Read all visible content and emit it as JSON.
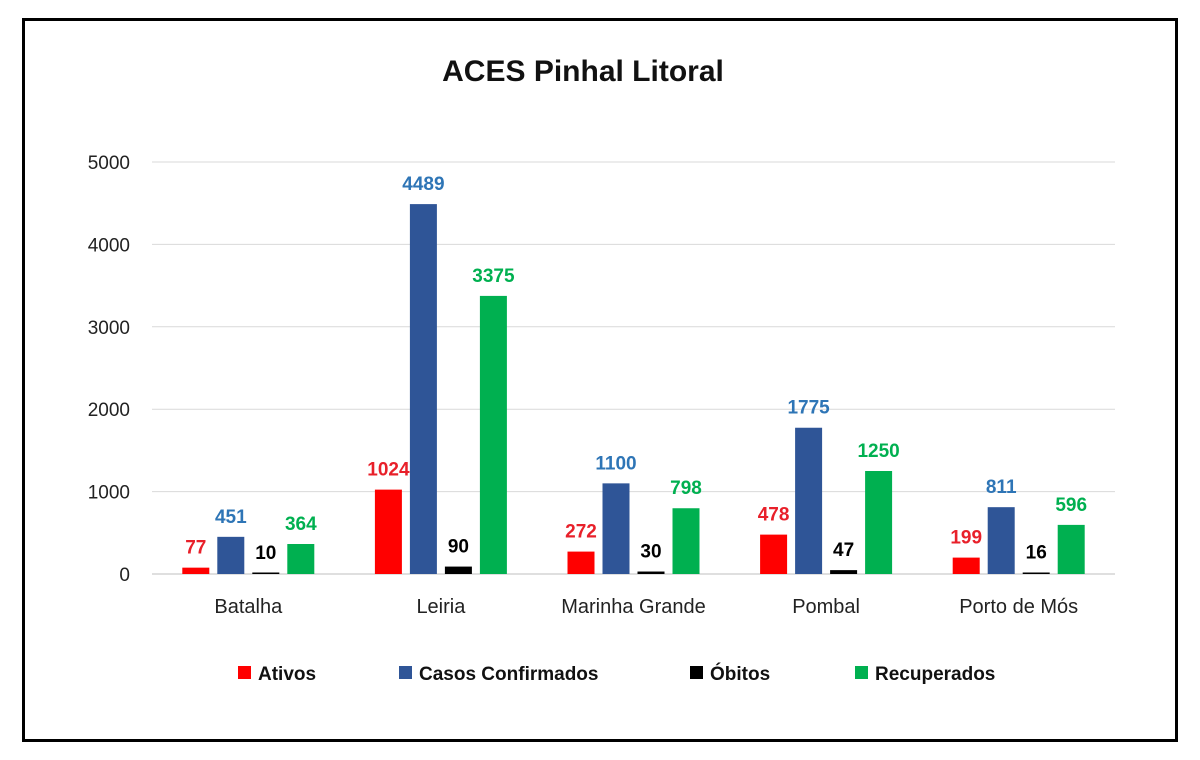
{
  "chart_data": {
    "type": "bar",
    "title": "ACES Pinhal Litoral",
    "categories": [
      "Batalha",
      "Leiria",
      "Marinha Grande",
      "Pombal",
      "Porto de Mós"
    ],
    "series": [
      {
        "name": "Ativos",
        "color": "#ff0000",
        "label_color": "#e8202a",
        "values": [
          77,
          1024,
          272,
          478,
          199
        ]
      },
      {
        "name": "Casos Confirmados",
        "color": "#2f5597",
        "label_color": "#2e75b6",
        "values": [
          451,
          4489,
          1100,
          1775,
          811
        ]
      },
      {
        "name": "Óbitos",
        "color": "#000000",
        "label_color": "#000000",
        "values": [
          10,
          90,
          30,
          47,
          16
        ]
      },
      {
        "name": "Recuperados",
        "color": "#00b050",
        "label_color": "#00b050",
        "values": [
          364,
          3375,
          798,
          1250,
          596
        ]
      }
    ],
    "yticks": [
      0,
      1000,
      2000,
      3000,
      4000,
      5000
    ],
    "ylim": [
      0,
      5000
    ],
    "grid": true,
    "legend": "bottom"
  }
}
